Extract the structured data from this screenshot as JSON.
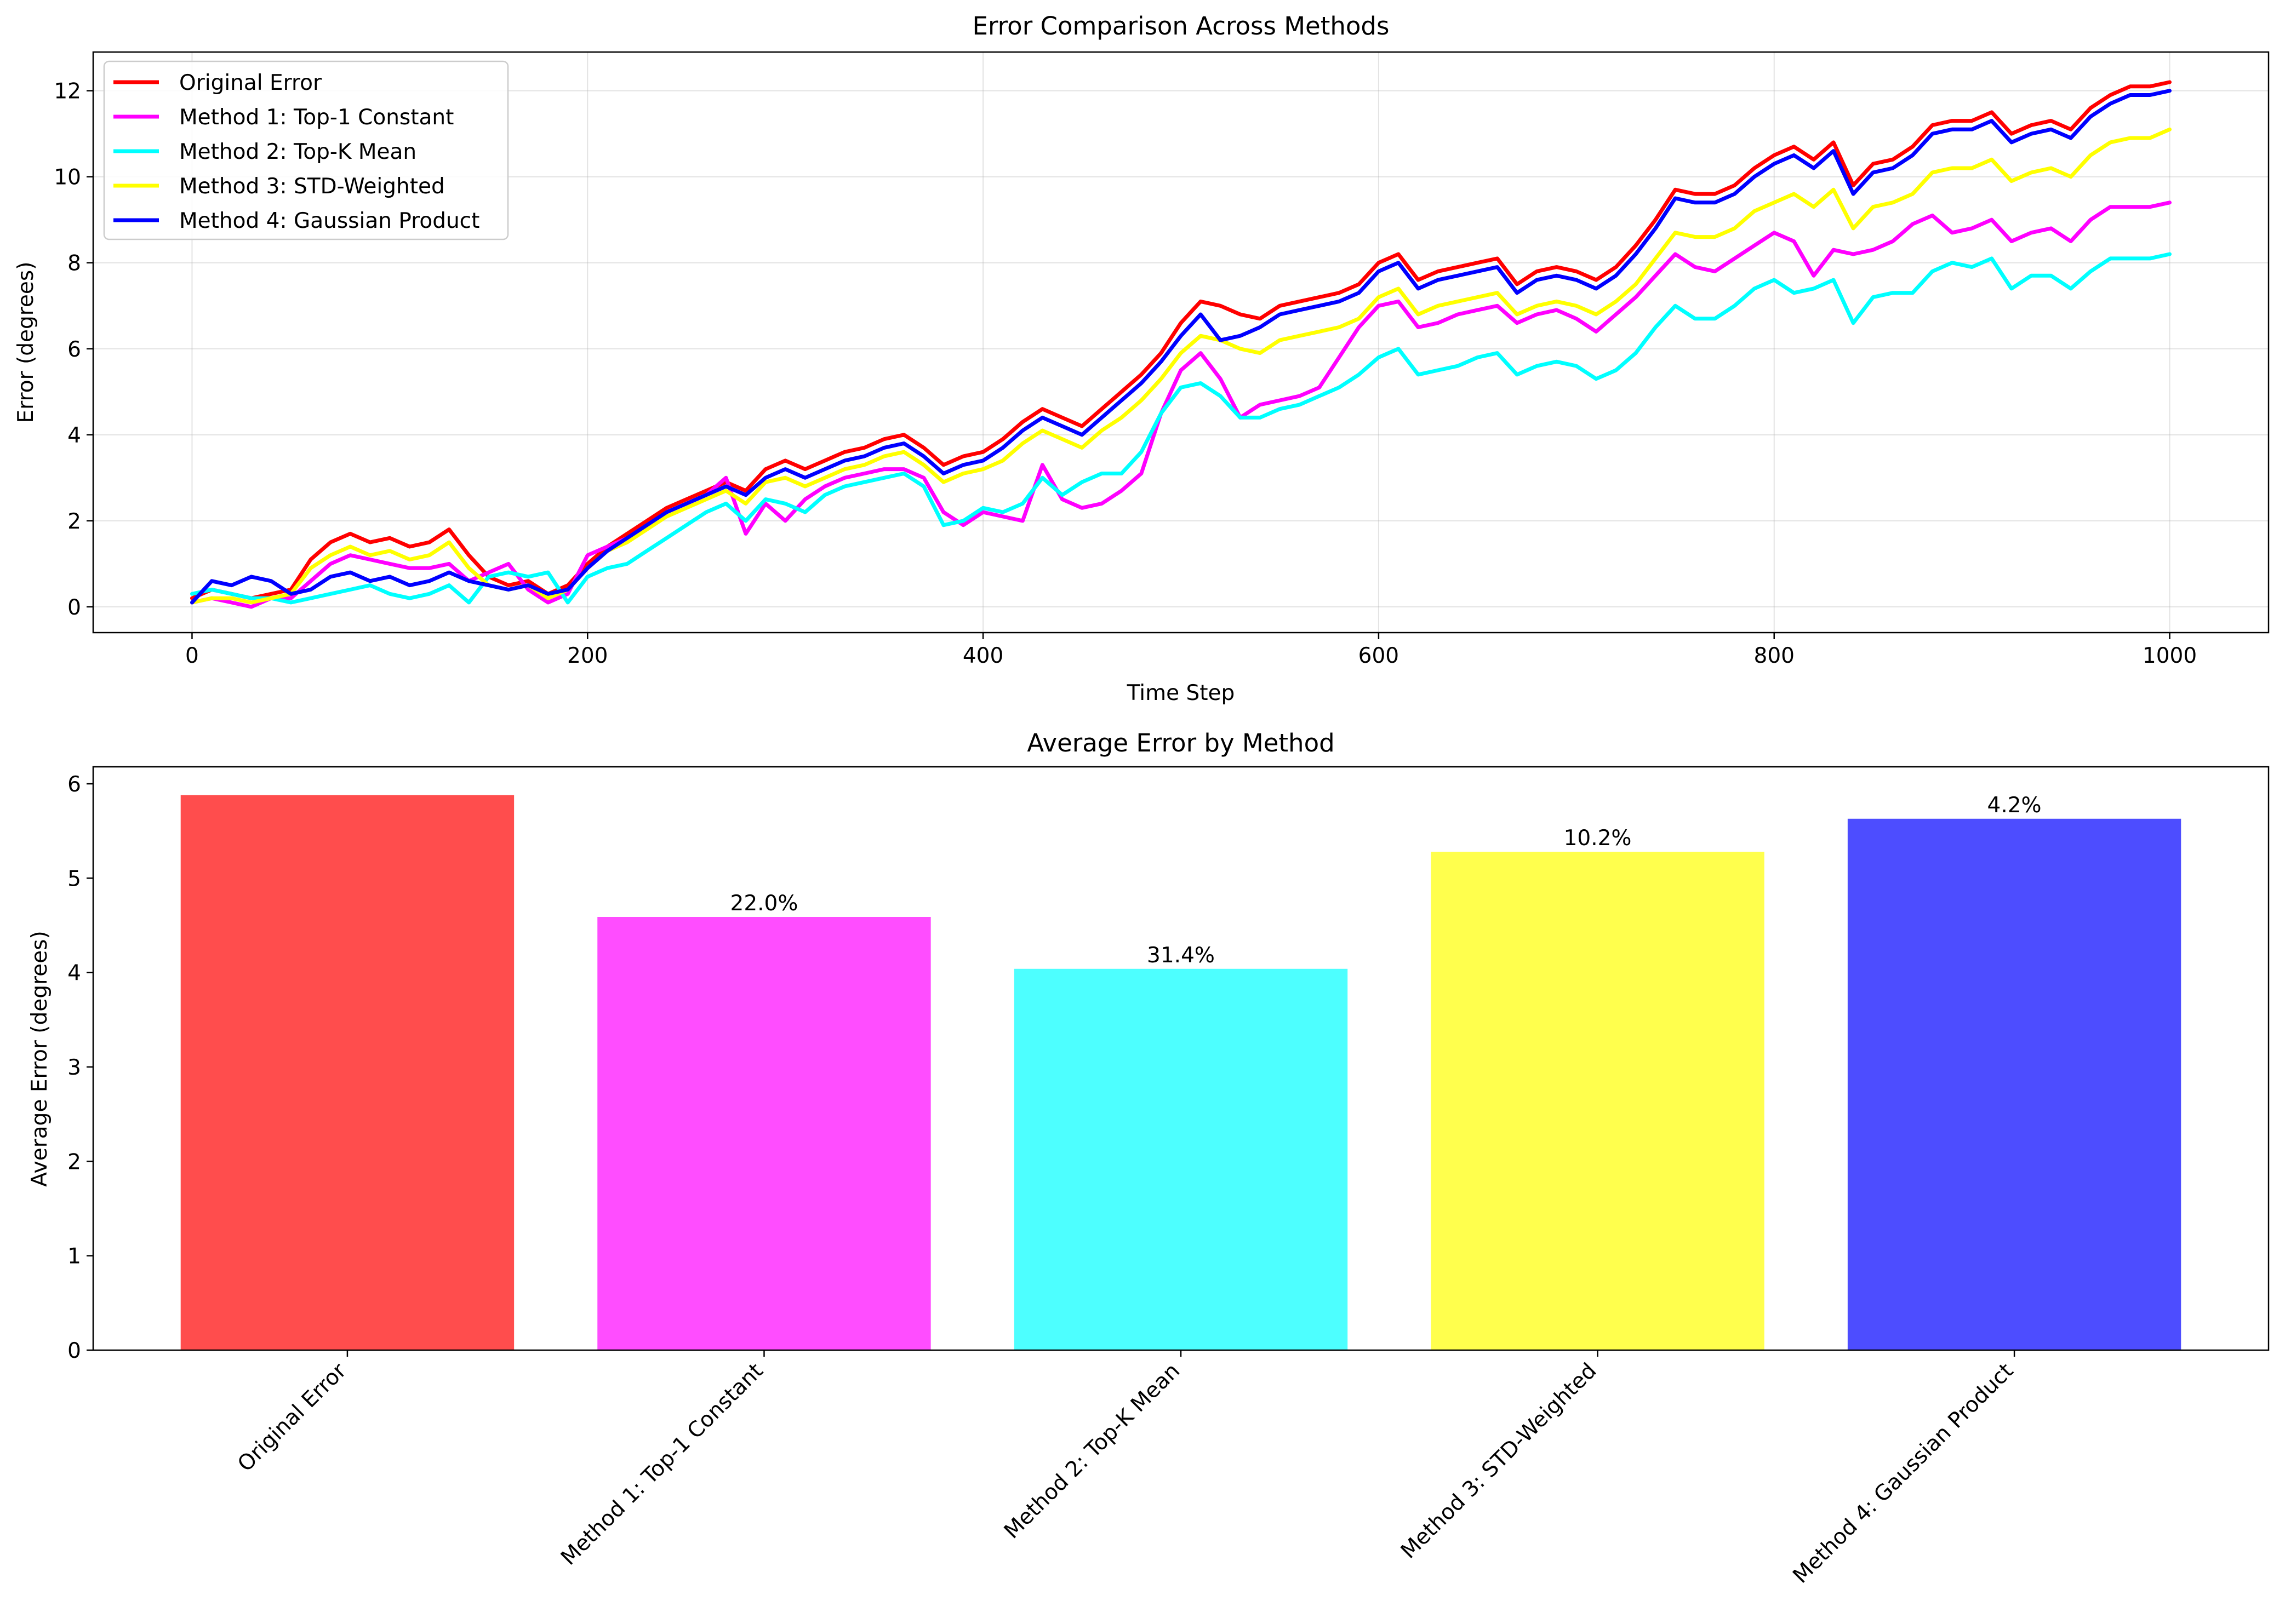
{
  "chart_data": [
    {
      "type": "line",
      "title": "Error Comparison Across Methods",
      "xlabel": "Time Step",
      "ylabel": "Error (degrees)",
      "xlim": [
        -50,
        1050
      ],
      "ylim": [
        -0.6,
        12.9
      ],
      "xticks": [
        0,
        200,
        400,
        600,
        800,
        1000
      ],
      "yticks": [
        0,
        2,
        4,
        6,
        8,
        10,
        12
      ],
      "grid": true,
      "legend": "upper-left",
      "x": [
        0,
        10,
        20,
        30,
        40,
        50,
        60,
        70,
        80,
        90,
        100,
        110,
        120,
        130,
        140,
        150,
        160,
        170,
        180,
        190,
        200,
        210,
        220,
        230,
        240,
        250,
        260,
        270,
        280,
        290,
        300,
        310,
        320,
        330,
        340,
        350,
        360,
        370,
        380,
        390,
        400,
        410,
        420,
        430,
        440,
        450,
        460,
        470,
        480,
        490,
        500,
        510,
        520,
        530,
        540,
        550,
        560,
        570,
        580,
        590,
        600,
        610,
        620,
        630,
        640,
        650,
        660,
        670,
        680,
        690,
        700,
        710,
        720,
        730,
        740,
        750,
        760,
        770,
        780,
        790,
        800,
        810,
        820,
        830,
        840,
        850,
        860,
        870,
        880,
        890,
        900,
        910,
        920,
        930,
        940,
        950,
        960,
        970,
        980,
        990,
        1000
      ],
      "series": [
        {
          "name": "Original Error",
          "color": "#ff0000",
          "values": [
            0.2,
            0.4,
            0.3,
            0.2,
            0.3,
            0.4,
            1.1,
            1.5,
            1.7,
            1.5,
            1.6,
            1.4,
            1.5,
            1.8,
            1.2,
            0.7,
            0.5,
            0.6,
            0.3,
            0.5,
            1.0,
            1.4,
            1.7,
            2.0,
            2.3,
            2.5,
            2.7,
            2.9,
            2.7,
            3.2,
            3.4,
            3.2,
            3.4,
            3.6,
            3.7,
            3.9,
            4.0,
            3.7,
            3.3,
            3.5,
            3.6,
            3.9,
            4.3,
            4.6,
            4.4,
            4.2,
            4.6,
            5.0,
            5.4,
            5.9,
            6.6,
            7.1,
            7.0,
            6.8,
            6.7,
            7.0,
            7.1,
            7.2,
            7.3,
            7.5,
            8.0,
            8.2,
            7.6,
            7.8,
            7.9,
            8.0,
            8.1,
            7.5,
            7.8,
            7.9,
            7.8,
            7.6,
            7.9,
            8.4,
            9.0,
            9.7,
            9.6,
            9.6,
            9.8,
            10.2,
            10.5,
            10.7,
            10.4,
            10.8,
            9.8,
            10.3,
            10.4,
            10.7,
            11.2,
            11.3,
            11.3,
            11.5,
            11.0,
            11.2,
            11.3,
            11.1,
            11.6,
            11.9,
            12.1,
            12.1,
            12.2
          ]
        },
        {
          "name": "Method 1: Top-1 Constant",
          "color": "#ff00ff",
          "values": [
            0.1,
            0.2,
            0.1,
            0.0,
            0.2,
            0.2,
            0.6,
            1.0,
            1.2,
            1.1,
            1.0,
            0.9,
            0.9,
            1.0,
            0.6,
            0.8,
            1.0,
            0.4,
            0.1,
            0.3,
            1.2,
            1.4,
            1.6,
            1.9,
            2.2,
            2.4,
            2.6,
            3.0,
            1.7,
            2.4,
            2.0,
            2.5,
            2.8,
            3.0,
            3.1,
            3.2,
            3.2,
            3.0,
            2.2,
            1.9,
            2.2,
            2.1,
            2.0,
            3.3,
            2.5,
            2.3,
            2.4,
            2.7,
            3.1,
            4.5,
            5.5,
            5.9,
            5.3,
            4.4,
            4.7,
            4.8,
            4.9,
            5.1,
            5.8,
            6.5,
            7.0,
            7.1,
            6.5,
            6.6,
            6.8,
            6.9,
            7.0,
            6.6,
            6.8,
            6.9,
            6.7,
            6.4,
            6.8,
            7.2,
            7.7,
            8.2,
            7.9,
            7.8,
            8.1,
            8.4,
            8.7,
            8.5,
            7.7,
            8.3,
            8.2,
            8.3,
            8.5,
            8.9,
            9.1,
            8.7,
            8.8,
            9.0,
            8.5,
            8.7,
            8.8,
            8.5,
            9.0,
            9.3,
            9.3,
            9.3,
            9.4
          ]
        },
        {
          "name": "Method 2: Top-K Mean",
          "color": "#00ffff",
          "values": [
            0.3,
            0.4,
            0.3,
            0.2,
            0.2,
            0.1,
            0.2,
            0.3,
            0.4,
            0.5,
            0.3,
            0.2,
            0.3,
            0.5,
            0.1,
            0.7,
            0.8,
            0.7,
            0.8,
            0.1,
            0.7,
            0.9,
            1.0,
            1.3,
            1.6,
            1.9,
            2.2,
            2.4,
            2.0,
            2.5,
            2.4,
            2.2,
            2.6,
            2.8,
            2.9,
            3.0,
            3.1,
            2.8,
            1.9,
            2.0,
            2.3,
            2.2,
            2.4,
            3.0,
            2.6,
            2.9,
            3.1,
            3.1,
            3.6,
            4.5,
            5.1,
            5.2,
            4.9,
            4.4,
            4.4,
            4.6,
            4.7,
            4.9,
            5.1,
            5.4,
            5.8,
            6.0,
            5.4,
            5.5,
            5.6,
            5.8,
            5.9,
            5.4,
            5.6,
            5.7,
            5.6,
            5.3,
            5.5,
            5.9,
            6.5,
            7.0,
            6.7,
            6.7,
            7.0,
            7.4,
            7.6,
            7.3,
            7.4,
            7.6,
            6.6,
            7.2,
            7.3,
            7.3,
            7.8,
            8.0,
            7.9,
            8.1,
            7.4,
            7.7,
            7.7,
            7.4,
            7.8,
            8.1,
            8.1,
            8.1,
            8.2
          ]
        },
        {
          "name": "Method 3: STD-Weighted",
          "color": "#ffff00",
          "values": [
            0.1,
            0.2,
            0.2,
            0.1,
            0.2,
            0.3,
            0.9,
            1.2,
            1.4,
            1.2,
            1.3,
            1.1,
            1.2,
            1.5,
            0.9,
            0.5,
            0.4,
            0.5,
            0.2,
            0.4,
            0.9,
            1.3,
            1.5,
            1.8,
            2.1,
            2.3,
            2.5,
            2.7,
            2.4,
            2.9,
            3.0,
            2.8,
            3.0,
            3.2,
            3.3,
            3.5,
            3.6,
            3.3,
            2.9,
            3.1,
            3.2,
            3.4,
            3.8,
            4.1,
            3.9,
            3.7,
            4.1,
            4.4,
            4.8,
            5.3,
            5.9,
            6.3,
            6.2,
            6.0,
            5.9,
            6.2,
            6.3,
            6.4,
            6.5,
            6.7,
            7.2,
            7.4,
            6.8,
            7.0,
            7.1,
            7.2,
            7.3,
            6.8,
            7.0,
            7.1,
            7.0,
            6.8,
            7.1,
            7.5,
            8.1,
            8.7,
            8.6,
            8.6,
            8.8,
            9.2,
            9.4,
            9.6,
            9.3,
            9.7,
            8.8,
            9.3,
            9.4,
            9.6,
            10.1,
            10.2,
            10.2,
            10.4,
            9.9,
            10.1,
            10.2,
            10.0,
            10.5,
            10.8,
            10.9,
            10.9,
            11.1
          ]
        },
        {
          "name": "Method 4: Gaussian Product",
          "color": "#0000ff",
          "values": [
            0.1,
            0.6,
            0.5,
            0.7,
            0.6,
            0.3,
            0.4,
            0.7,
            0.8,
            0.6,
            0.7,
            0.5,
            0.6,
            0.8,
            0.6,
            0.5,
            0.4,
            0.5,
            0.3,
            0.4,
            0.9,
            1.3,
            1.6,
            1.9,
            2.2,
            2.4,
            2.6,
            2.8,
            2.6,
            3.0,
            3.2,
            3.0,
            3.2,
            3.4,
            3.5,
            3.7,
            3.8,
            3.5,
            3.1,
            3.3,
            3.4,
            3.7,
            4.1,
            4.4,
            4.2,
            4.0,
            4.4,
            4.8,
            5.2,
            5.7,
            6.3,
            6.8,
            6.2,
            6.3,
            6.5,
            6.8,
            6.9,
            7.0,
            7.1,
            7.3,
            7.8,
            8.0,
            7.4,
            7.6,
            7.7,
            7.8,
            7.9,
            7.3,
            7.6,
            7.7,
            7.6,
            7.4,
            7.7,
            8.2,
            8.8,
            9.5,
            9.4,
            9.4,
            9.6,
            10.0,
            10.3,
            10.5,
            10.2,
            10.6,
            9.6,
            10.1,
            10.2,
            10.5,
            11.0,
            11.1,
            11.1,
            11.3,
            10.8,
            11.0,
            11.1,
            10.9,
            11.4,
            11.7,
            11.9,
            11.9,
            12.0
          ]
        }
      ]
    },
    {
      "type": "bar",
      "title": "Average Error by Method",
      "xlabel": "",
      "ylabel": "Average Error (degrees)",
      "ylim": [
        0,
        6.18
      ],
      "yticks": [
        0,
        1,
        2,
        3,
        4,
        5,
        6
      ],
      "categories": [
        "Original Error",
        "Method 1: Top-1 Constant",
        "Method 2: Top-K Mean",
        "Method 3: STD-Weighted",
        "Method 4: Gaussian Product"
      ],
      "values": [
        5.88,
        4.59,
        4.04,
        5.28,
        5.63
      ],
      "colors": [
        "#ff4d4d",
        "#ff4dff",
        "#4dffff",
        "#ffff4d",
        "#4d4dff"
      ],
      "labels": [
        "",
        "22.0%",
        "31.4%",
        "10.2%",
        "4.2%"
      ]
    }
  ]
}
